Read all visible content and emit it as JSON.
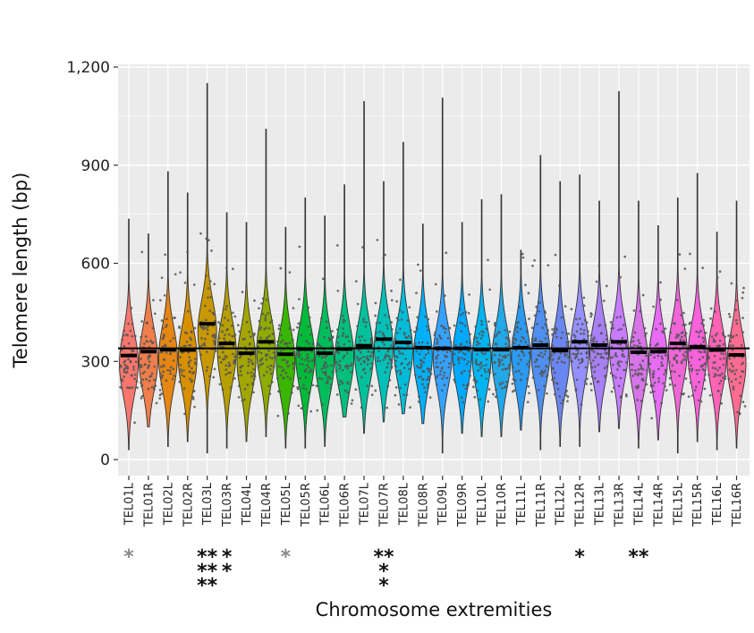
{
  "chart_data": {
    "type": "violin",
    "title": "",
    "xlabel": "Chromosome extremities",
    "ylabel": "Telomere length (bp)",
    "ylim": [
      -30,
      1200
    ],
    "yticks": [
      0,
      300,
      600,
      900,
      1200
    ],
    "ytick_labels": [
      "0",
      "300",
      "600",
      "900",
      "1,200"
    ],
    "grid": true,
    "overall_mean": 340,
    "series": [
      {
        "name": "TEL01L",
        "mean": 318,
        "min": 30,
        "max": 735,
        "color": "#F8766D",
        "stars": [
          {
            "text": "*",
            "color": "#8a8a8a"
          }
        ]
      },
      {
        "name": "TEL01R",
        "mean": 330,
        "min": 100,
        "max": 690,
        "color": "#F07E4A",
        "stars": []
      },
      {
        "name": "TEL02L",
        "mean": 336,
        "min": 40,
        "max": 880,
        "color": "#E68613",
        "stars": []
      },
      {
        "name": "TEL02R",
        "mean": 335,
        "min": 55,
        "max": 815,
        "color": "#D89000",
        "stars": []
      },
      {
        "name": "TEL03L",
        "mean": 415,
        "min": 20,
        "max": 1150,
        "color": "#C99800",
        "stars": [
          {
            "text": "**",
            "color": "#111111"
          },
          {
            "text": "**",
            "color": "#111111"
          },
          {
            "text": "**",
            "color": "#111111"
          }
        ]
      },
      {
        "name": "TEL03R",
        "mean": 355,
        "min": 35,
        "max": 755,
        "color": "#B79F00",
        "stars": [
          {
            "text": "*",
            "color": "#111111"
          },
          {
            "text": "*",
            "color": "#111111"
          }
        ]
      },
      {
        "name": "TEL04L",
        "mean": 325,
        "min": 55,
        "max": 725,
        "color": "#A3A500",
        "stars": []
      },
      {
        "name": "TEL04R",
        "mean": 360,
        "min": 70,
        "max": 1010,
        "color": "#8EAB00",
        "stars": []
      },
      {
        "name": "TEL05L",
        "mean": 322,
        "min": 35,
        "max": 710,
        "color": "#39B600",
        "stars": [
          {
            "text": "*",
            "color": "#8a8a8a"
          }
        ]
      },
      {
        "name": "TEL05R",
        "mean": 338,
        "min": 35,
        "max": 800,
        "color": "#00BA38",
        "stars": []
      },
      {
        "name": "TEL06L",
        "mean": 325,
        "min": 40,
        "max": 745,
        "color": "#00BD5C",
        "stars": []
      },
      {
        "name": "TEL06R",
        "mean": 338,
        "min": 130,
        "max": 840,
        "color": "#00BF7D",
        "stars": []
      },
      {
        "name": "TEL07L",
        "mean": 348,
        "min": 80,
        "max": 1095,
        "color": "#00C19C",
        "stars": []
      },
      {
        "name": "TEL07R",
        "mean": 368,
        "min": 115,
        "max": 850,
        "color": "#00C0B8",
        "stars": [
          {
            "text": "**",
            "color": "#111111"
          },
          {
            "text": "*",
            "color": "#111111"
          },
          {
            "text": "*",
            "color": "#111111"
          }
        ]
      },
      {
        "name": "TEL08L",
        "mean": 358,
        "min": 140,
        "max": 970,
        "color": "#00BCD8",
        "stars": []
      },
      {
        "name": "TEL08R",
        "mean": 342,
        "min": 110,
        "max": 720,
        "color": "#00B0F6",
        "stars": []
      },
      {
        "name": "TEL09L",
        "mean": 340,
        "min": 20,
        "max": 1105,
        "color": "#35A2FF",
        "stars": []
      },
      {
        "name": "TEL09R",
        "mean": 340,
        "min": 80,
        "max": 725,
        "color": "#00A9FF",
        "stars": []
      },
      {
        "name": "TEL10L",
        "mean": 336,
        "min": 70,
        "max": 795,
        "color": "#00B4EF",
        "stars": []
      },
      {
        "name": "TEL10R",
        "mean": 336,
        "min": 70,
        "max": 810,
        "color": "#23A8E8",
        "stars": []
      },
      {
        "name": "TEL11L",
        "mean": 342,
        "min": 90,
        "max": 640,
        "color": "#2B9AF0",
        "stars": []
      },
      {
        "name": "TEL11R",
        "mean": 350,
        "min": 30,
        "max": 930,
        "color": "#4E8FEF",
        "stars": []
      },
      {
        "name": "TEL12L",
        "mean": 333,
        "min": 40,
        "max": 850,
        "color": "#6A86F0",
        "stars": []
      },
      {
        "name": "TEL12R",
        "mean": 360,
        "min": 40,
        "max": 870,
        "color": "#9590FF",
        "stars": [
          {
            "text": "*",
            "color": "#111111"
          }
        ]
      },
      {
        "name": "TEL13L",
        "mean": 350,
        "min": 85,
        "max": 790,
        "color": "#A87FF4",
        "stars": []
      },
      {
        "name": "TEL13R",
        "mean": 360,
        "min": 95,
        "max": 1125,
        "color": "#C77CFF",
        "stars": []
      },
      {
        "name": "TEL14L",
        "mean": 328,
        "min": 35,
        "max": 790,
        "color": "#D774E8",
        "stars": [
          {
            "text": "**",
            "color": "#111111"
          }
        ]
      },
      {
        "name": "TEL14R",
        "mean": 330,
        "min": 60,
        "max": 715,
        "color": "#E76BF3",
        "stars": []
      },
      {
        "name": "TEL15L",
        "mean": 355,
        "min": 20,
        "max": 800,
        "color": "#F066D6",
        "stars": []
      },
      {
        "name": "TEL15R",
        "mean": 345,
        "min": 55,
        "max": 875,
        "color": "#FA62DB",
        "stars": []
      },
      {
        "name": "TEL16L",
        "mean": 335,
        "min": 30,
        "max": 695,
        "color": "#FF63B6",
        "stars": []
      },
      {
        "name": "TEL16R",
        "mean": 320,
        "min": 35,
        "max": 790,
        "color": "#FF6C91",
        "stars": []
      }
    ]
  }
}
